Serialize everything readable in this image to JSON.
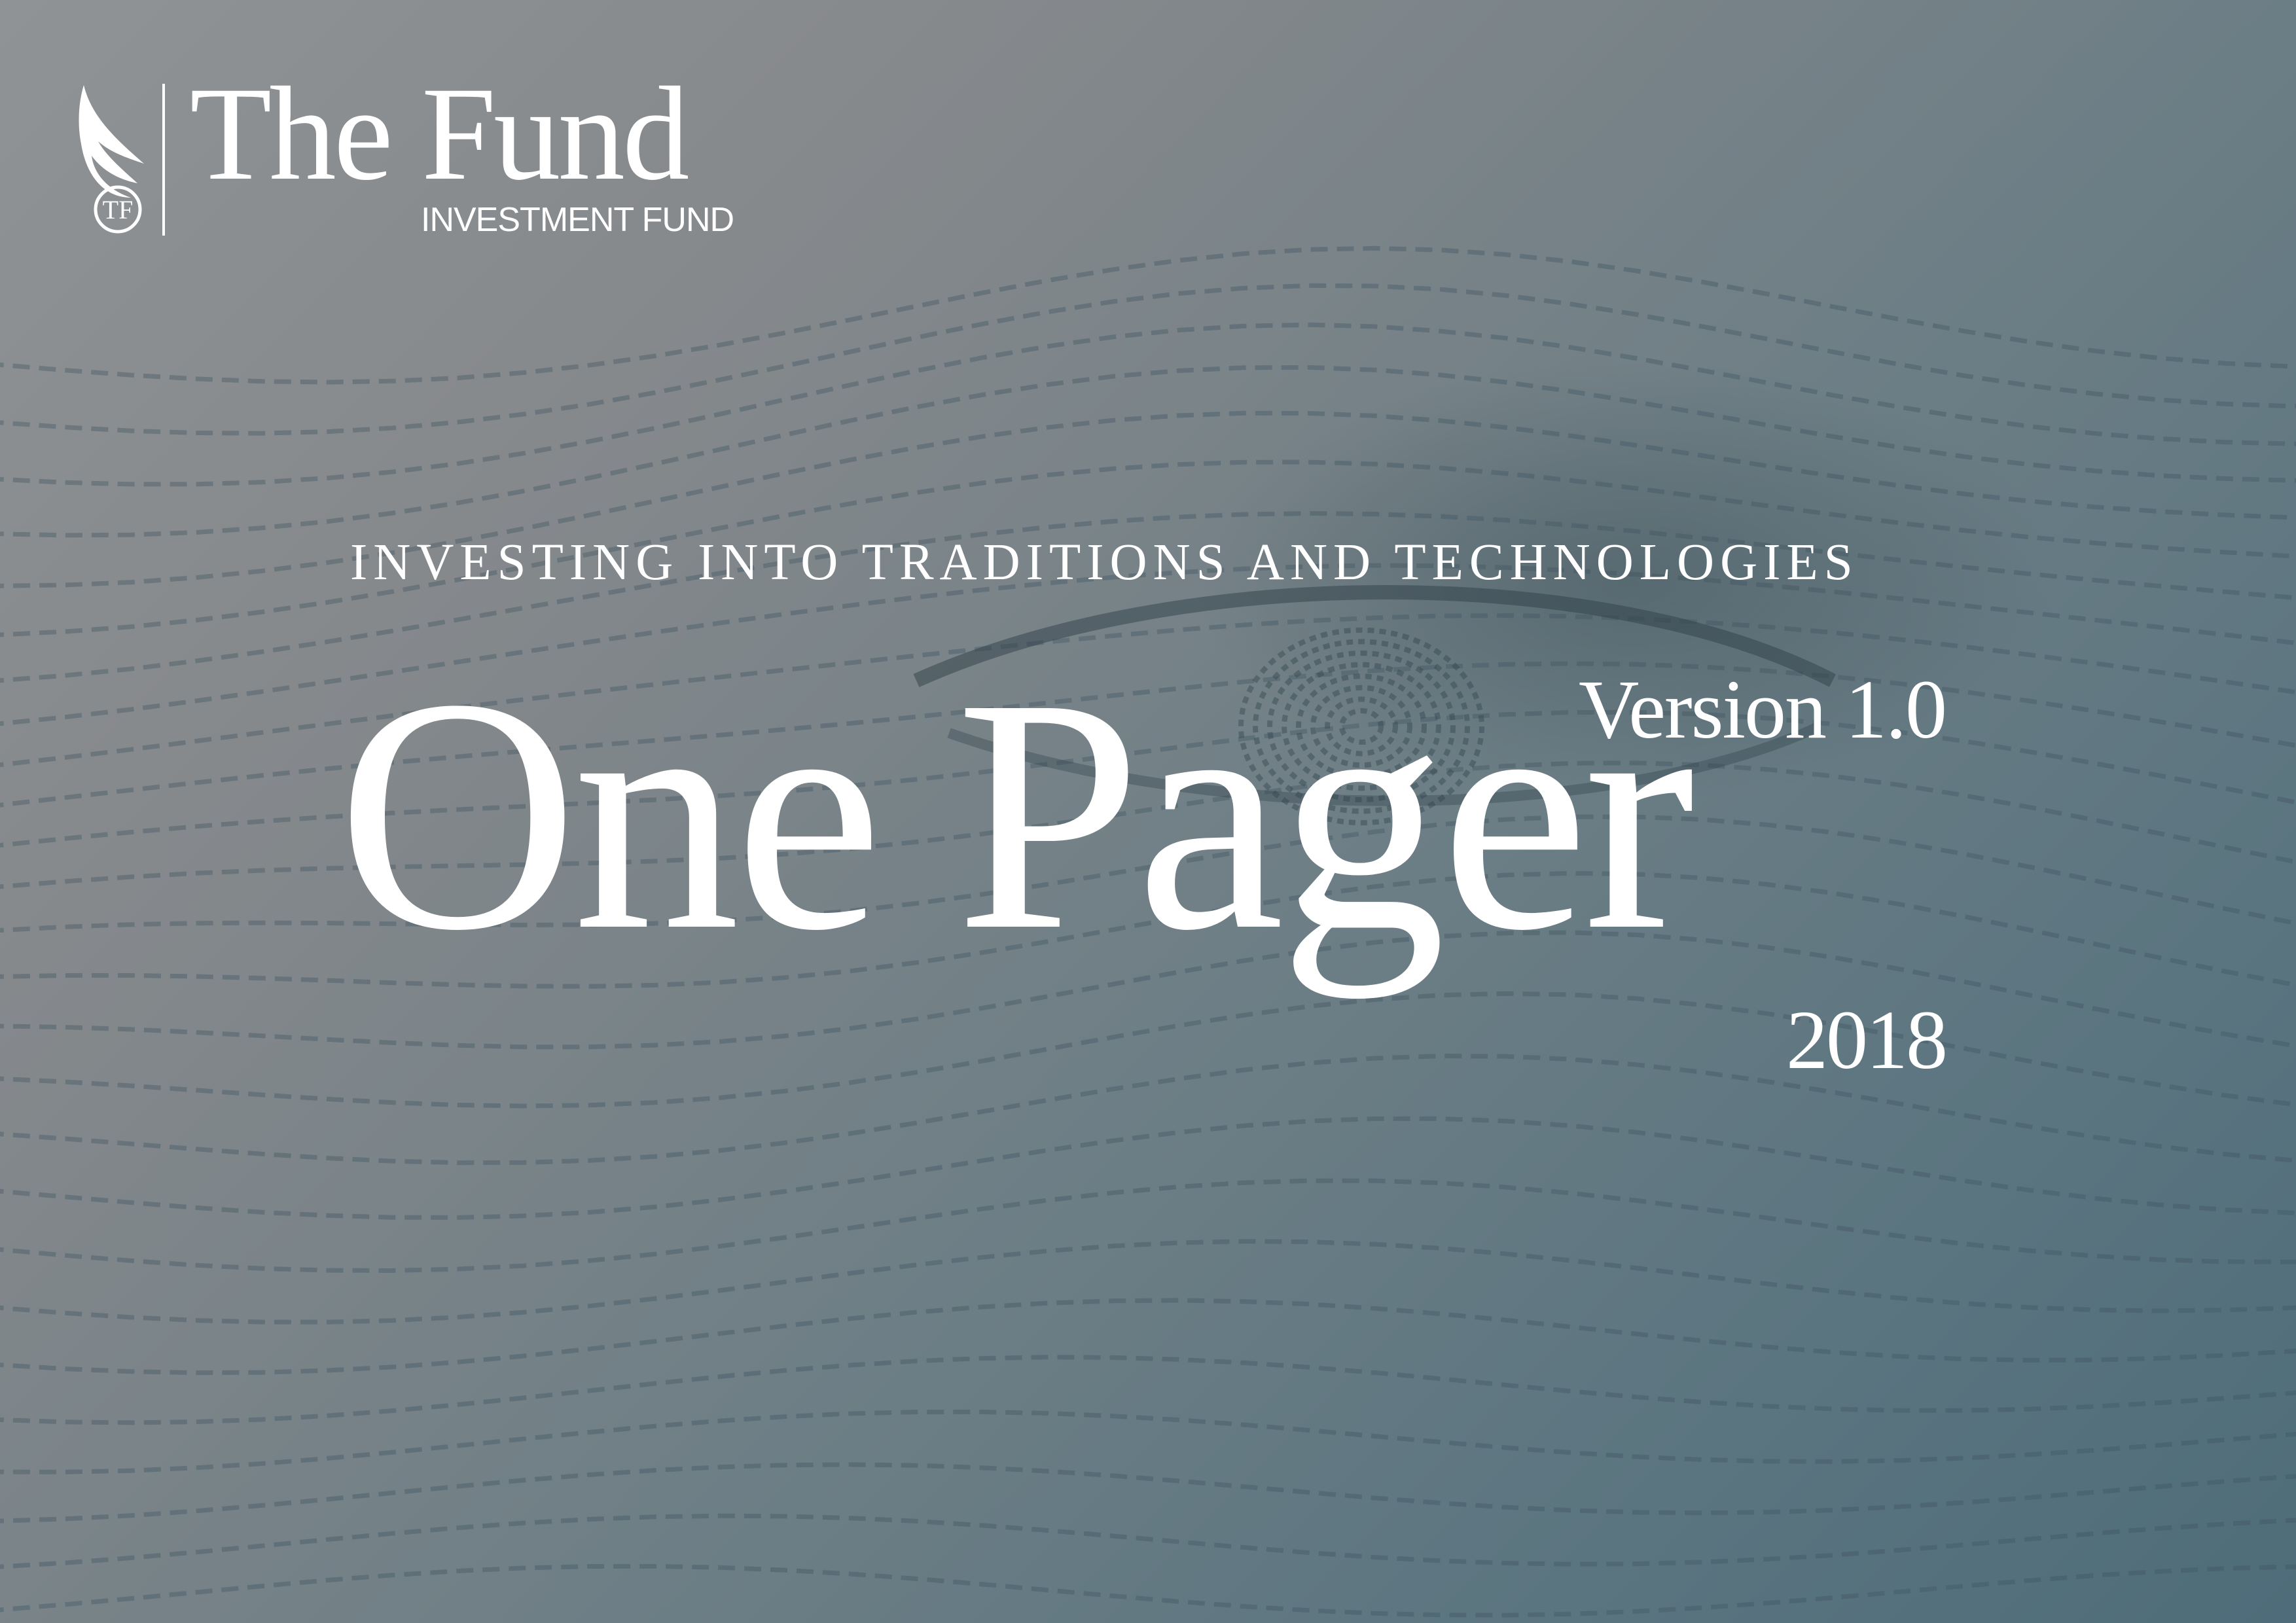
{
  "logo": {
    "name": "The Fund",
    "subtitle": "INVESTMENT FUND",
    "monogram": "TF",
    "mark_icon": "eagle-wing-monogram-icon"
  },
  "cover": {
    "tagline": "INVESTING INTO TRADITIONS AND TECHNOLOGIES",
    "title": "One Pager",
    "version": "Version 1.0",
    "year": "2018"
  },
  "colors": {
    "background_top_left": "#8f9395",
    "background_bottom_right": "#4e6c79",
    "texture_lines": "#3f5560",
    "text": "#ffffff"
  }
}
